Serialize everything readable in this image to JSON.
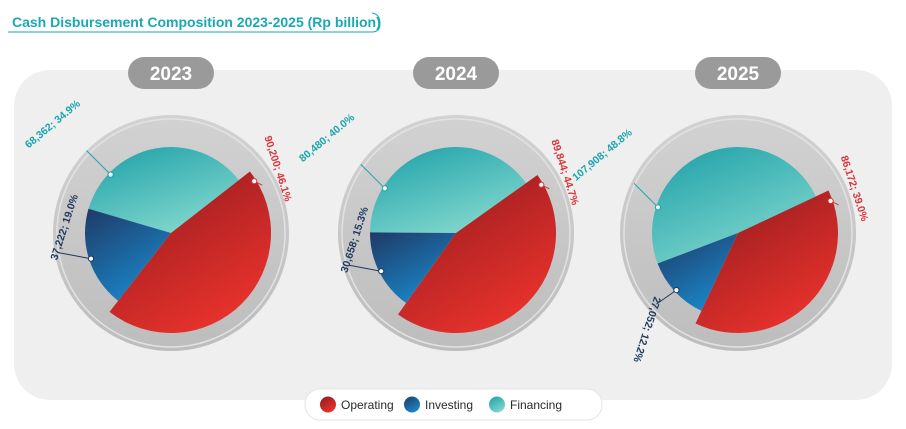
{
  "chart_data": {
    "type": "pie",
    "title": "Cash Disbursement Composition 2023-2025 (Rp billion)",
    "categories": [
      "Operating",
      "Investing",
      "Financing"
    ],
    "colors": {
      "Operating": [
        "#8e1a1e",
        "#e8322c"
      ],
      "Investing": [
        "#1f3a66",
        "#1a86c8"
      ],
      "Financing": [
        "#1b9fa8",
        "#7fd6cc"
      ]
    },
    "label_colors": {
      "Operating": "#d8353a",
      "Investing": "#1f3a5e",
      "Financing": "#1aa5ad"
    },
    "legend_position": "bottom",
    "charts": [
      {
        "year": "2023",
        "values": [
          90200,
          37222,
          68362
        ],
        "labels": [
          "90,200; 46.1%",
          "37,222; 19.0%",
          "68,362; 34.9%"
        ]
      },
      {
        "year": "2024",
        "values": [
          89844,
          30658,
          80480
        ],
        "labels": [
          "89,844; 44.7%",
          "30,658; 15.3%",
          "80,480; 40.0%"
        ]
      },
      {
        "year": "2025",
        "values": [
          86172,
          27052,
          107908
        ],
        "labels": [
          "86,172; 39.0%",
          "27,052; 12.2%",
          "107,908; 48.8%"
        ]
      }
    ]
  }
}
